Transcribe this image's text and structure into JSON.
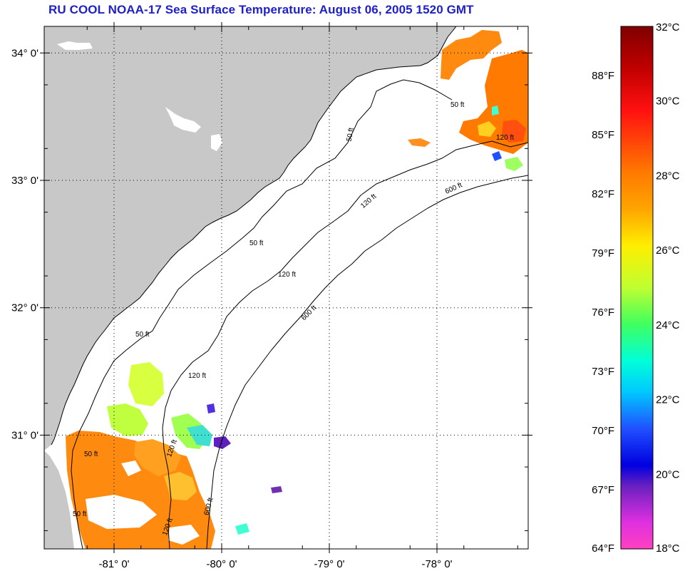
{
  "title": "RU COOL  NOAA-17  Sea Surface Temperature:  August 06, 2005 1520 GMT",
  "map": {
    "lat_ticks": [
      {
        "lat": 34,
        "label": "34° 0'"
      },
      {
        "lat": 33,
        "label": "33° 0'"
      },
      {
        "lat": 32,
        "label": "32° 0'"
      },
      {
        "lat": 31,
        "label": "31° 0'"
      }
    ],
    "lon_ticks": [
      {
        "lon": -81,
        "label": "-81° 0'"
      },
      {
        "lon": -80,
        "label": "-80° 0'"
      },
      {
        "lon": -79,
        "label": "-79° 0'"
      },
      {
        "lon": -78,
        "label": "-78° 0'"
      }
    ],
    "contour_labels": [
      {
        "text": "50 ft"
      },
      {
        "text": "50 ft"
      },
      {
        "text": "50 ft"
      },
      {
        "text": "50 ft"
      },
      {
        "text": "50 ft"
      },
      {
        "text": "50 ft"
      },
      {
        "text": "120 ft"
      },
      {
        "text": "120 ft"
      },
      {
        "text": "120 ft"
      },
      {
        "text": "120 ft"
      },
      {
        "text": "120 ft"
      },
      {
        "text": "120 ft"
      },
      {
        "text": "600 ft"
      },
      {
        "text": "600 ft"
      },
      {
        "text": "600 ft"
      }
    ],
    "colors": {
      "land": "#c8c8c8",
      "ocean": "#ffffff",
      "contour": "#000000"
    }
  },
  "colorbar": {
    "fahrenheit_labels": [
      "88°F",
      "85°F",
      "82°F",
      "79°F",
      "76°F",
      "73°F",
      "70°F",
      "67°F",
      "64°F"
    ],
    "celsius_labels": [
      "32°C",
      "30°C",
      "28°C",
      "26°C",
      "24°C",
      "22°C",
      "20°C",
      "18°C"
    ]
  }
}
